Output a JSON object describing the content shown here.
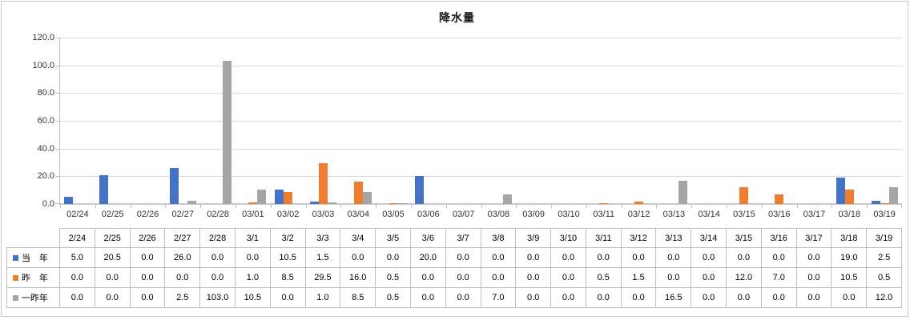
{
  "title": "降水量",
  "colors": {
    "series_this_year": "#4472C4",
    "series_last_year": "#ED7D31",
    "series_two_years_ago": "#A5A5A5",
    "gridline": "#D9D9D9",
    "axis": "#BFBFBF",
    "table_border": "#BFBFBF",
    "axis_label": "#333333"
  },
  "chart_data": {
    "type": "bar",
    "title": "降水量",
    "xlabel": "",
    "ylabel": "",
    "ylim": [
      0,
      120
    ],
    "ytick_interval": 20,
    "ytick_labels": [
      "0.0",
      "20.0",
      "40.0",
      "60.0",
      "80.0",
      "100.0",
      "120.0"
    ],
    "grid": true,
    "legend_position": "data-table",
    "categories": [
      "02/24",
      "02/25",
      "02/26",
      "02/27",
      "02/28",
      "03/01",
      "03/02",
      "03/03",
      "03/04",
      "03/05",
      "03/06",
      "03/07",
      "03/08",
      "03/09",
      "03/10",
      "03/11",
      "03/12",
      "03/13",
      "03/14",
      "03/15",
      "03/16",
      "03/17",
      "03/18",
      "03/19"
    ],
    "table_categories": [
      "2/24",
      "2/25",
      "2/26",
      "2/27",
      "2/28",
      "3/1",
      "3/2",
      "3/3",
      "3/4",
      "3/5",
      "3/6",
      "3/7",
      "3/8",
      "3/9",
      "3/10",
      "3/11",
      "3/12",
      "3/13",
      "3/14",
      "3/15",
      "3/16",
      "3/17",
      "3/18",
      "3/19"
    ],
    "series": [
      {
        "name": "当　年",
        "color": "#4472C4",
        "values": [
          5.0,
          20.5,
          0.0,
          26.0,
          0.0,
          0.0,
          10.5,
          1.5,
          0.0,
          0.0,
          20.0,
          0.0,
          0.0,
          0.0,
          0.0,
          0.0,
          0.0,
          0.0,
          0.0,
          0.0,
          0.0,
          0.0,
          19.0,
          2.5
        ]
      },
      {
        "name": "昨　年",
        "color": "#ED7D31",
        "values": [
          0.0,
          0.0,
          0.0,
          0.0,
          0.0,
          1.0,
          8.5,
          29.5,
          16.0,
          0.5,
          0.0,
          0.0,
          0.0,
          0.0,
          0.0,
          0.5,
          1.5,
          0.0,
          0.0,
          12.0,
          7.0,
          0.0,
          10.5,
          0.5
        ]
      },
      {
        "name": "一昨年",
        "color": "#A5A5A5",
        "values": [
          0.0,
          0.0,
          0.0,
          2.5,
          103.0,
          10.5,
          0.0,
          1.0,
          8.5,
          0.5,
          0.0,
          0.0,
          7.0,
          0.0,
          0.0,
          0.0,
          0.0,
          16.5,
          0.0,
          0.0,
          0.0,
          0.0,
          0.0,
          12.0
        ]
      }
    ]
  }
}
